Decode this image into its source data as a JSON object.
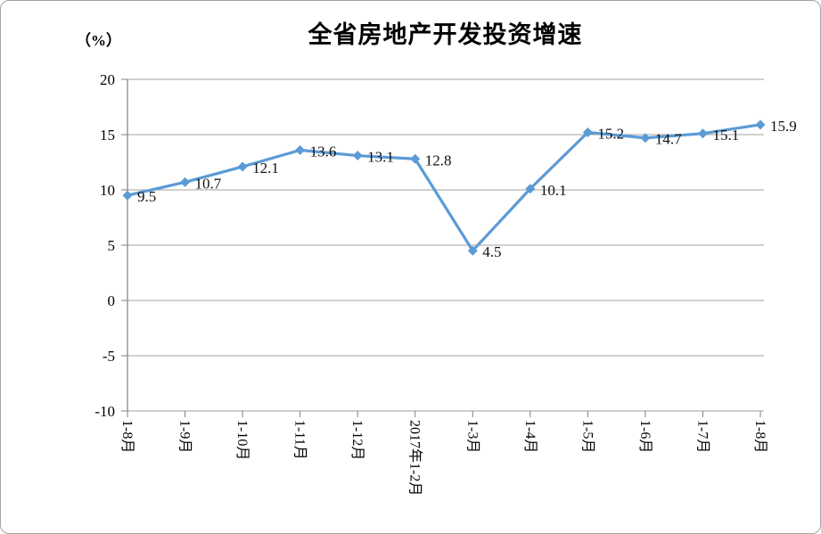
{
  "chart_data": {
    "type": "line",
    "title": "全省房地产开发投资增速",
    "unit_label": "（%）",
    "categories": [
      "1-8月",
      "1-9月",
      "1-10月",
      "1-11月",
      "1-12月",
      "2017年1-2月",
      "1-3月",
      "1-4月",
      "1-5月",
      "1-6月",
      "1-7月",
      "1-8月"
    ],
    "series": [
      {
        "name": "全省房地产开发投资增速",
        "values": [
          9.5,
          10.7,
          12.1,
          13.6,
          13.1,
          12.8,
          4.5,
          10.1,
          15.2,
          14.7,
          15.1,
          15.9
        ]
      }
    ],
    "data_labels": [
      "9.5",
      "10.7",
      "12.1",
      "13.6",
      "13.1",
      "12.8",
      "4.5",
      "10.1",
      "15.2",
      "14.7",
      "15.1",
      "15.9"
    ],
    "ylim": [
      -10,
      20
    ],
    "yticks": [
      20,
      15,
      10,
      5,
      0,
      -5,
      -10
    ],
    "xlabel": "",
    "ylabel": "（%）",
    "grid": "horizontal",
    "legend": "none",
    "x_label_rotation_deg": 90,
    "marker": "diamond",
    "line_color": "#5B9BD5",
    "gridline_color": "#A0A0A0",
    "axis_color": "#7F7F7F",
    "text_color": "#000000"
  }
}
